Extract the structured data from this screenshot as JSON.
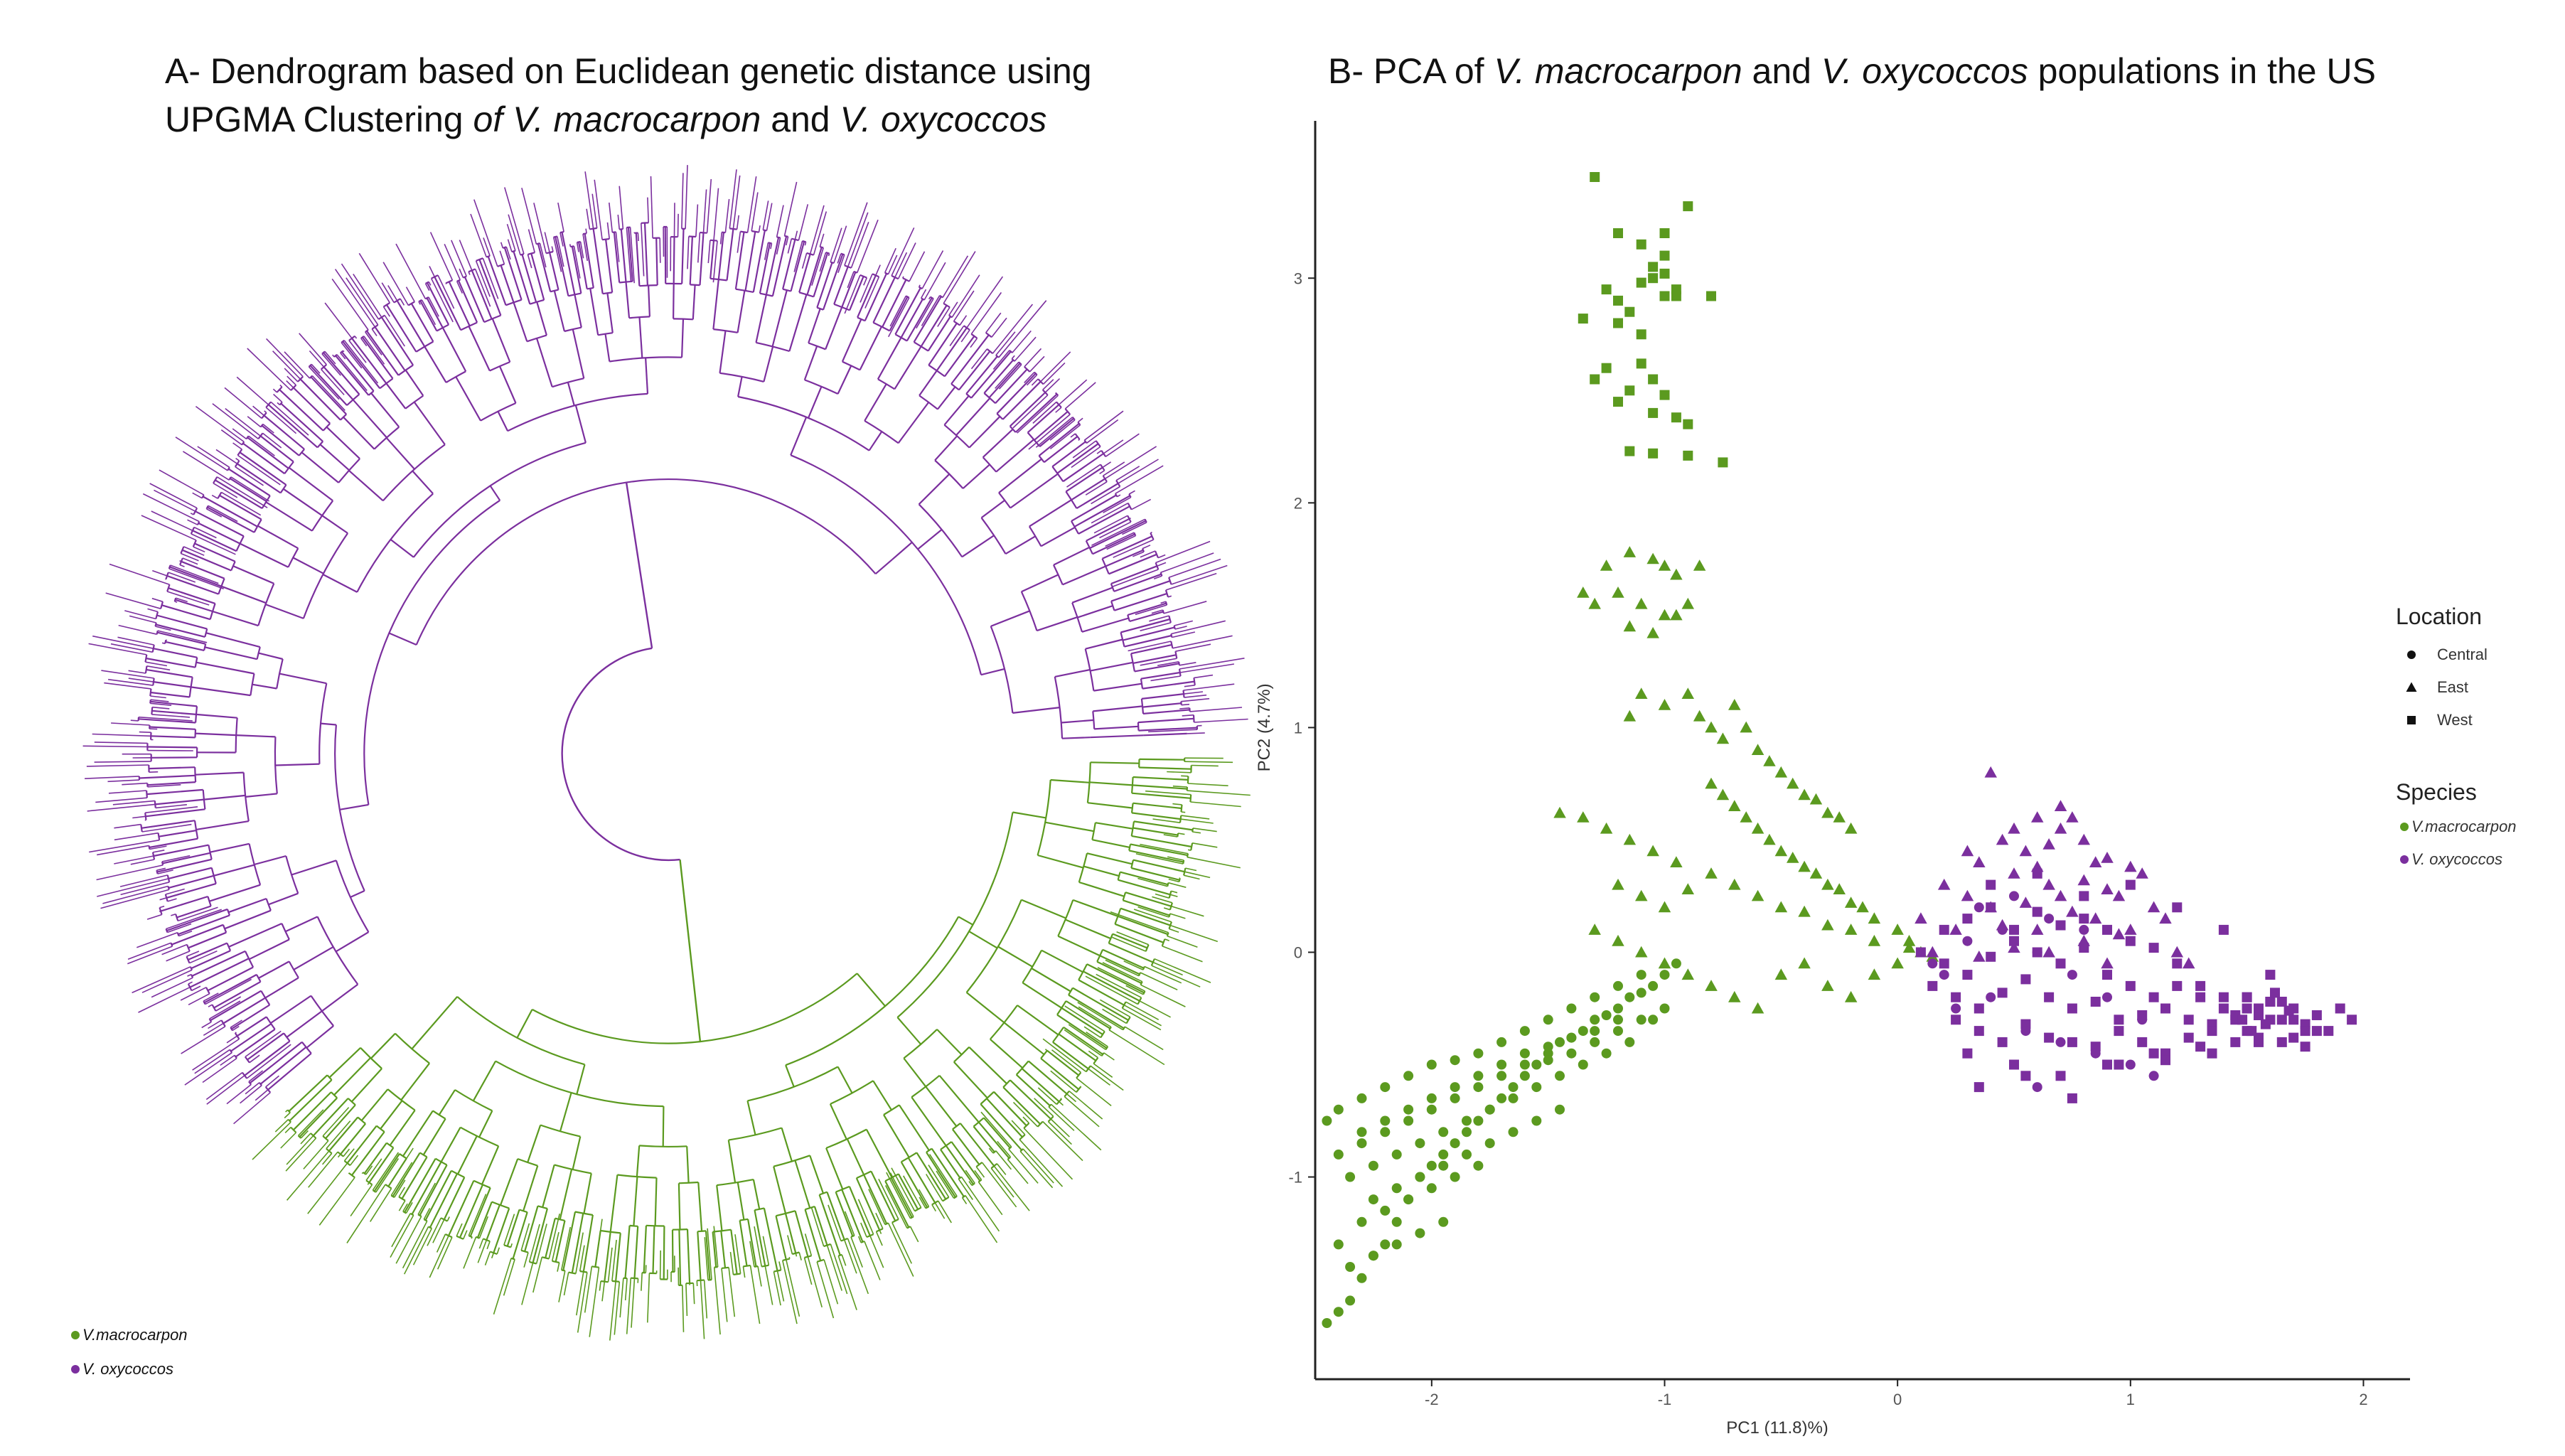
{
  "panel_a": {
    "title_line1": "A- Dendrogram based on Euclidean genetic distance using",
    "title_line2_prefix": "UPGMA Clustering ",
    "title_line2_italic": "of V. macrocarpon",
    "title_line2_mid": " and ",
    "title_line2_italic2": "V. oxycoccos"
  },
  "panel_b": {
    "title_prefix": "B- PCA of ",
    "title_italic1": "V. macrocarpon",
    "title_mid": " and ",
    "title_italic2": "V. oxycoccos",
    "title_suffix": " populations in the US"
  },
  "colors": {
    "macrocarpon": "#5b9a1f",
    "oxycoccos": "#7b2f9e"
  },
  "chart_data": [
    {
      "type": "dendrogram",
      "layout": "circular",
      "legend_placement": "bottom-left",
      "legend": [
        {
          "label": "V.macrocarpon",
          "color": "#5b9a1f"
        },
        {
          "label": "V. oxycoccos",
          "color": "#7b2f9e"
        }
      ],
      "clades": [
        {
          "name": "V.macrocarpon",
          "color": "#5b9a1f",
          "share_of_circle": 0.38
        },
        {
          "name": "V. oxycoccos",
          "color": "#7b2f9e",
          "share_of_circle": 0.62
        }
      ]
    },
    {
      "type": "scatter",
      "xlabel": "PC1 (11.8)%)",
      "ylabel": "PC2 (4.7%)",
      "xlim": [
        -2.5,
        2.2
      ],
      "ylim": [
        -1.9,
        3.7
      ],
      "xticks": [
        -2,
        -1,
        0,
        1,
        2
      ],
      "yticks": [
        -1,
        0,
        1,
        2,
        3
      ],
      "grid": false,
      "legend_placement": "right",
      "shape_legend_title": "Location",
      "shape_legend": [
        {
          "label": "Central",
          "shape": "circle"
        },
        {
          "label": "East",
          "shape": "triangle"
        },
        {
          "label": "West",
          "shape": "square"
        }
      ],
      "color_legend_title": "Species",
      "color_legend": [
        {
          "label": "V.macrocarpon",
          "color": "#5b9a1f"
        },
        {
          "label": "V. oxycoccos",
          "color": "#7b2f9e"
        }
      ],
      "series": [
        {
          "species": "V.macrocarpon",
          "location": "West",
          "color": "#5b9a1f",
          "shape": "square",
          "x": [
            -1.3,
            -1.2,
            -1.0,
            -0.9,
            -1.1,
            -1.05,
            -1.0,
            -0.95,
            -1.1,
            -1.0,
            -1.25,
            -1.2,
            -1.15,
            -0.95,
            -0.8,
            -1.05,
            -1.0,
            -1.35,
            -1.2,
            -1.1,
            -1.25,
            -1.1,
            -1.05,
            -1.3,
            -1.15,
            -1.0,
            -1.2,
            -1.05,
            -0.95,
            -0.9,
            -0.75,
            -1.15,
            -1.05,
            -0.9
          ],
          "y": [
            3.45,
            3.2,
            3.1,
            3.32,
            3.15,
            3.05,
            3.2,
            2.95,
            2.98,
            3.02,
            2.95,
            2.9,
            2.85,
            2.92,
            2.92,
            3.0,
            2.92,
            2.82,
            2.8,
            2.75,
            2.6,
            2.62,
            2.55,
            2.55,
            2.5,
            2.48,
            2.45,
            2.4,
            2.38,
            2.35,
            2.18,
            2.23,
            2.22,
            2.21
          ]
        },
        {
          "species": "V.macrocarpon",
          "location": "East",
          "color": "#5b9a1f",
          "shape": "triangle",
          "x": [
            -1.35,
            -1.25,
            -1.15,
            -1.05,
            -1.0,
            -0.95,
            -0.85,
            -1.3,
            -1.2,
            -1.1,
            -1.0,
            -0.9,
            -1.15,
            -1.05,
            -0.95,
            -1.1,
            -1.0,
            -1.15,
            -0.9,
            -0.85,
            -0.8,
            -0.75,
            -0.7,
            -0.65,
            -0.6,
            -0.55,
            -0.5,
            -0.45,
            -0.4,
            -0.35,
            -0.3,
            -0.25,
            -0.2,
            -0.8,
            -0.75,
            -0.7,
            -0.65,
            -0.6,
            -0.55,
            -0.5,
            -0.45,
            -0.4,
            -0.35,
            -0.3,
            -0.25,
            -0.2,
            -0.15,
            -0.1,
            -1.45,
            -1.35,
            -1.25,
            -1.15,
            -1.05,
            -0.95,
            -1.2,
            -1.1,
            -1.0,
            -0.9,
            -0.8,
            -0.7,
            -0.6,
            -0.5,
            -0.4,
            -0.3,
            -0.2,
            -0.1,
            0.0,
            0.05,
            0.1,
            0.15,
            -1.3,
            -1.2,
            -1.1,
            -1.0,
            -0.9,
            -0.8,
            -0.7,
            -0.6,
            -0.5,
            -0.4,
            -0.3,
            -0.2,
            -0.1,
            0.0,
            0.05
          ],
          "y": [
            1.6,
            1.72,
            1.78,
            1.75,
            1.72,
            1.68,
            1.72,
            1.55,
            1.6,
            1.55,
            1.5,
            1.55,
            1.45,
            1.42,
            1.5,
            1.15,
            1.1,
            1.05,
            1.15,
            1.05,
            1.0,
            0.95,
            1.1,
            1.0,
            0.9,
            0.85,
            0.8,
            0.75,
            0.7,
            0.68,
            0.62,
            0.6,
            0.55,
            0.75,
            0.7,
            0.65,
            0.6,
            0.55,
            0.5,
            0.45,
            0.42,
            0.38,
            0.35,
            0.3,
            0.28,
            0.22,
            0.2,
            0.15,
            0.62,
            0.6,
            0.55,
            0.5,
            0.45,
            0.4,
            0.3,
            0.25,
            0.2,
            0.28,
            0.35,
            0.3,
            0.25,
            0.2,
            0.18,
            0.12,
            0.1,
            0.05,
            0.1,
            0.05,
            0.0,
            -0.02,
            0.1,
            0.05,
            0.0,
            -0.05,
            -0.1,
            -0.15,
            -0.2,
            -0.25,
            -0.1,
            -0.05,
            -0.15,
            -0.2,
            -0.1,
            -0.05,
            0.02
          ]
        },
        {
          "species": "V.macrocarpon",
          "location": "Central",
          "color": "#5b9a1f",
          "shape": "circle",
          "x": [
            -2.45,
            -2.4,
            -2.35,
            -2.3,
            -2.25,
            -2.2,
            -2.15,
            -2.1,
            -2.05,
            -2.0,
            -1.95,
            -1.9,
            -1.85,
            -1.8,
            -1.75,
            -1.7,
            -1.65,
            -1.6,
            -1.55,
            -1.5,
            -1.45,
            -1.4,
            -1.35,
            -1.3,
            -1.25,
            -1.2,
            -1.15,
            -1.1,
            -1.05,
            -1.0,
            -0.95,
            -2.4,
            -2.3,
            -2.2,
            -2.1,
            -2.0,
            -1.9,
            -1.8,
            -1.7,
            -1.6,
            -1.5,
            -1.4,
            -1.3,
            -1.2,
            -1.1,
            -1.0,
            -2.35,
            -2.25,
            -2.15,
            -2.05,
            -1.95,
            -1.85,
            -1.75,
            -1.65,
            -1.55,
            -1.45,
            -1.35,
            -1.25,
            -1.15,
            -1.05,
            -2.3,
            -2.2,
            -2.1,
            -2.0,
            -1.9,
            -1.8,
            -1.7,
            -1.6,
            -1.5,
            -1.4,
            -1.3,
            -1.2,
            -2.25,
            -2.15,
            -2.05,
            -1.95,
            -1.85,
            -1.75,
            -1.65,
            -1.55,
            -1.45,
            -2.4,
            -2.3,
            -2.2,
            -2.1,
            -2.0,
            -1.9,
            -1.8,
            -2.35,
            -2.25,
            -2.15,
            -2.05,
            -1.95,
            -2.45,
            -2.4,
            -2.3,
            -2.2,
            -2.1,
            -2.0,
            -1.9,
            -1.8,
            -1.7,
            -1.6,
            -1.5,
            -1.4,
            -1.3,
            -1.2,
            -1.1
          ],
          "y": [
            -1.65,
            -1.6,
            -1.55,
            -1.45,
            -1.35,
            -1.3,
            -1.2,
            -1.1,
            -1.0,
            -0.95,
            -0.9,
            -0.85,
            -0.8,
            -0.75,
            -0.7,
            -0.65,
            -0.6,
            -0.55,
            -0.5,
            -0.45,
            -0.4,
            -0.38,
            -0.35,
            -0.3,
            -0.28,
            -0.25,
            -0.2,
            -0.18,
            -0.15,
            -0.1,
            -0.05,
            -0.9,
            -0.85,
            -0.8,
            -0.75,
            -0.7,
            -0.65,
            -0.6,
            -0.55,
            -0.5,
            -0.48,
            -0.45,
            -0.4,
            -0.35,
            -0.3,
            -0.25,
            -1.0,
            -0.95,
            -0.9,
            -0.85,
            -0.8,
            -0.75,
            -0.7,
            -0.65,
            -0.6,
            -0.55,
            -0.5,
            -0.45,
            -0.4,
            -0.3,
            -0.8,
            -0.75,
            -0.7,
            -0.65,
            -0.6,
            -0.55,
            -0.5,
            -0.45,
            -0.42,
            -0.38,
            -0.35,
            -0.3,
            -1.1,
            -1.05,
            -1.0,
            -0.95,
            -0.9,
            -0.85,
            -0.8,
            -0.75,
            -0.7,
            -1.3,
            -1.2,
            -1.15,
            -1.1,
            -1.05,
            -1.0,
            -0.95,
            -1.4,
            -1.35,
            -1.3,
            -1.25,
            -1.2,
            -0.75,
            -0.7,
            -0.65,
            -0.6,
            -0.55,
            -0.5,
            -0.48,
            -0.45,
            -0.4,
            -0.35,
            -0.3,
            -0.25,
            -0.2,
            -0.15,
            -0.1
          ]
        },
        {
          "species": "V. oxycoccos",
          "location": "East",
          "color": "#7b2f9e",
          "shape": "triangle",
          "x": [
            0.4,
            0.5,
            0.6,
            0.7,
            0.75,
            0.8,
            0.45,
            0.55,
            0.65,
            0.7,
            0.85,
            0.9,
            1.0,
            1.05,
            0.3,
            0.35,
            0.5,
            0.6,
            0.65,
            0.8,
            0.9,
            0.95,
            1.1,
            1.15,
            0.2,
            0.3,
            0.4,
            0.55,
            0.7,
            0.75,
            0.85,
            1.0,
            0.1,
            0.25,
            0.45,
            0.6,
            0.8,
            0.95,
            0.15,
            0.35,
            0.5,
            0.65,
            0.9,
            1.2,
            1.25
          ],
          "y": [
            0.8,
            0.55,
            0.6,
            0.65,
            0.6,
            0.5,
            0.5,
            0.45,
            0.48,
            0.55,
            0.4,
            0.42,
            0.38,
            0.35,
            0.45,
            0.4,
            0.35,
            0.38,
            0.3,
            0.32,
            0.28,
            0.25,
            0.2,
            0.15,
            0.3,
            0.25,
            0.2,
            0.22,
            0.25,
            0.18,
            0.15,
            0.1,
            0.15,
            0.1,
            0.12,
            0.1,
            0.05,
            0.08,
            0.0,
            -0.02,
            0.02,
            0.0,
            -0.05,
            0.0,
            -0.05
          ]
        },
        {
          "species": "V. oxycoccos",
          "location": "West",
          "color": "#7b2f9e",
          "shape": "square",
          "x": [
            0.1,
            0.2,
            0.3,
            0.4,
            0.5,
            0.6,
            0.7,
            0.8,
            0.9,
            1.0,
            1.1,
            1.2,
            1.3,
            1.4,
            1.5,
            1.6,
            1.7,
            1.8,
            1.9,
            0.15,
            0.25,
            0.35,
            0.45,
            0.55,
            0.65,
            0.75,
            0.85,
            0.95,
            1.05,
            1.15,
            1.25,
            1.35,
            1.45,
            1.55,
            1.65,
            1.75,
            1.85,
            1.95,
            0.2,
            0.3,
            0.4,
            0.5,
            0.6,
            0.7,
            0.8,
            0.9,
            1.0,
            1.1,
            1.2,
            1.3,
            1.4,
            1.5,
            1.6,
            1.7,
            1.8,
            0.25,
            0.35,
            0.45,
            0.55,
            0.65,
            0.75,
            0.85,
            0.95,
            1.05,
            1.15,
            1.25,
            1.35,
            1.45,
            1.55,
            1.65,
            1.75,
            0.3,
            0.5,
            0.7,
            0.9,
            1.1,
            1.3,
            1.5,
            1.7,
            0.4,
            0.6,
            0.8,
            1.0,
            1.2,
            1.4,
            1.6,
            0.35,
            0.55,
            0.75,
            0.95,
            1.15,
            1.35,
            1.55,
            1.75,
            1.5,
            1.55,
            1.6,
            1.65,
            1.45,
            1.58,
            1.62,
            1.52,
            1.68,
            1.48
          ],
          "y": [
            0.0,
            -0.05,
            -0.1,
            -0.02,
            0.05,
            0.0,
            -0.05,
            0.02,
            -0.1,
            -0.15,
            -0.2,
            -0.15,
            -0.2,
            -0.25,
            -0.2,
            -0.22,
            -0.25,
            -0.28,
            -0.25,
            -0.15,
            -0.2,
            -0.25,
            -0.18,
            -0.12,
            -0.2,
            -0.25,
            -0.22,
            -0.3,
            -0.28,
            -0.25,
            -0.3,
            -0.32,
            -0.3,
            -0.28,
            -0.3,
            -0.32,
            -0.35,
            -0.3,
            0.1,
            0.15,
            0.2,
            0.1,
            0.18,
            0.12,
            0.15,
            0.1,
            0.05,
            0.02,
            -0.05,
            -0.15,
            -0.2,
            -0.25,
            -0.22,
            -0.3,
            -0.35,
            -0.3,
            -0.35,
            -0.4,
            -0.32,
            -0.38,
            -0.4,
            -0.42,
            -0.35,
            -0.4,
            -0.45,
            -0.38,
            -0.35,
            -0.4,
            -0.38,
            -0.4,
            -0.42,
            -0.45,
            -0.5,
            -0.55,
            -0.5,
            -0.45,
            -0.42,
            -0.35,
            -0.38,
            0.3,
            0.35,
            0.25,
            0.3,
            0.2,
            0.1,
            -0.1,
            -0.6,
            -0.55,
            -0.65,
            -0.5,
            -0.48,
            -0.45,
            -0.4,
            -0.35,
            -0.2,
            -0.25,
            -0.3,
            -0.22,
            -0.28,
            -0.32,
            -0.18,
            -0.35,
            -0.26,
            -0.3
          ]
        },
        {
          "species": "V. oxycoccos",
          "location": "Central",
          "color": "#7b2f9e",
          "shape": "circle",
          "x": [
            0.15,
            0.3,
            0.45,
            0.6,
            0.75,
            0.9,
            1.05,
            0.25,
            0.4,
            0.55,
            0.7,
            0.85,
            1.0,
            0.35,
            0.5,
            0.65,
            0.8,
            0.2,
            0.6,
            1.1
          ],
          "y": [
            -0.05,
            0.05,
            0.1,
            0.0,
            -0.1,
            -0.2,
            -0.3,
            -0.25,
            -0.2,
            -0.35,
            -0.4,
            -0.45,
            -0.5,
            0.2,
            0.25,
            0.15,
            0.1,
            -0.1,
            -0.6,
            -0.55
          ]
        }
      ]
    }
  ]
}
